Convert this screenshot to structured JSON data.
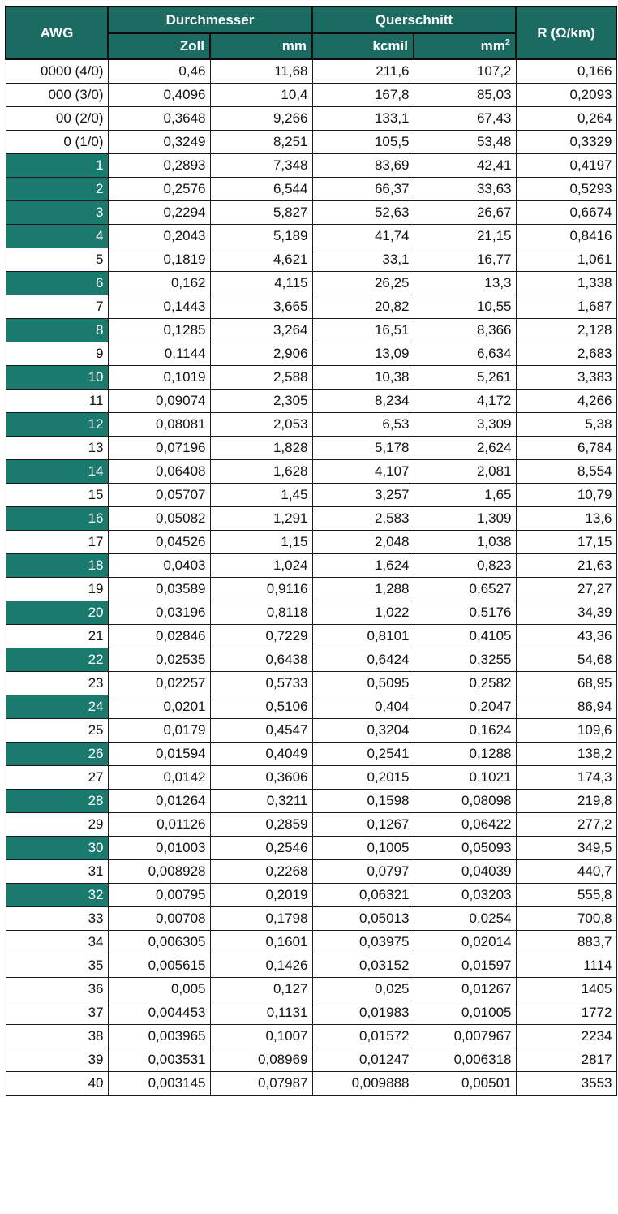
{
  "header": {
    "awg": "AWG",
    "durchmesser": "Durchmesser",
    "querschnitt": "Querschnitt",
    "resistance": "R (Ω/km)",
    "zoll": "Zoll",
    "mm": "mm",
    "kcmil": "kcmil",
    "mm2_base": "mm",
    "mm2_sup": "2"
  },
  "colors": {
    "header_bg": "#1b6b63",
    "highlight_bg": "#1b7a6e",
    "header_text": "#ffffff"
  },
  "rows": [
    {
      "awg": "0000 (4/0)",
      "zoll": "0,46",
      "mm": "11,68",
      "kcmil": "211,6",
      "mm2": "107,2",
      "r": "0,166",
      "highlight": false
    },
    {
      "awg": "000 (3/0)",
      "zoll": "0,4096",
      "mm": "10,4",
      "kcmil": "167,8",
      "mm2": "85,03",
      "r": "0,2093",
      "highlight": false
    },
    {
      "awg": "00 (2/0)",
      "zoll": "0,3648",
      "mm": "9,266",
      "kcmil": "133,1",
      "mm2": "67,43",
      "r": "0,264",
      "highlight": false
    },
    {
      "awg": "0 (1/0)",
      "zoll": "0,3249",
      "mm": "8,251",
      "kcmil": "105,5",
      "mm2": "53,48",
      "r": "0,3329",
      "highlight": false
    },
    {
      "awg": "1",
      "zoll": "0,2893",
      "mm": "7,348",
      "kcmil": "83,69",
      "mm2": "42,41",
      "r": "0,4197",
      "highlight": true
    },
    {
      "awg": "2",
      "zoll": "0,2576",
      "mm": "6,544",
      "kcmil": "66,37",
      "mm2": "33,63",
      "r": "0,5293",
      "highlight": true
    },
    {
      "awg": "3",
      "zoll": "0,2294",
      "mm": "5,827",
      "kcmil": "52,63",
      "mm2": "26,67",
      "r": "0,6674",
      "highlight": true
    },
    {
      "awg": "4",
      "zoll": "0,2043",
      "mm": "5,189",
      "kcmil": "41,74",
      "mm2": "21,15",
      "r": "0,8416",
      "highlight": true
    },
    {
      "awg": "5",
      "zoll": "0,1819",
      "mm": "4,621",
      "kcmil": "33,1",
      "mm2": "16,77",
      "r": "1,061",
      "highlight": false
    },
    {
      "awg": "6",
      "zoll": "0,162",
      "mm": "4,115",
      "kcmil": "26,25",
      "mm2": "13,3",
      "r": "1,338",
      "highlight": true
    },
    {
      "awg": "7",
      "zoll": "0,1443",
      "mm": "3,665",
      "kcmil": "20,82",
      "mm2": "10,55",
      "r": "1,687",
      "highlight": false
    },
    {
      "awg": "8",
      "zoll": "0,1285",
      "mm": "3,264",
      "kcmil": "16,51",
      "mm2": "8,366",
      "r": "2,128",
      "highlight": true
    },
    {
      "awg": "9",
      "zoll": "0,1144",
      "mm": "2,906",
      "kcmil": "13,09",
      "mm2": "6,634",
      "r": "2,683",
      "highlight": false
    },
    {
      "awg": "10",
      "zoll": "0,1019",
      "mm": "2,588",
      "kcmil": "10,38",
      "mm2": "5,261",
      "r": "3,383",
      "highlight": true
    },
    {
      "awg": "11",
      "zoll": "0,09074",
      "mm": "2,305",
      "kcmil": "8,234",
      "mm2": "4,172",
      "r": "4,266",
      "highlight": false
    },
    {
      "awg": "12",
      "zoll": "0,08081",
      "mm": "2,053",
      "kcmil": "6,53",
      "mm2": "3,309",
      "r": "5,38",
      "highlight": true
    },
    {
      "awg": "13",
      "zoll": "0,07196",
      "mm": "1,828",
      "kcmil": "5,178",
      "mm2": "2,624",
      "r": "6,784",
      "highlight": false
    },
    {
      "awg": "14",
      "zoll": "0,06408",
      "mm": "1,628",
      "kcmil": "4,107",
      "mm2": "2,081",
      "r": "8,554",
      "highlight": true
    },
    {
      "awg": "15",
      "zoll": "0,05707",
      "mm": "1,45",
      "kcmil": "3,257",
      "mm2": "1,65",
      "r": "10,79",
      "highlight": false
    },
    {
      "awg": "16",
      "zoll": "0,05082",
      "mm": "1,291",
      "kcmil": "2,583",
      "mm2": "1,309",
      "r": "13,6",
      "highlight": true
    },
    {
      "awg": "17",
      "zoll": "0,04526",
      "mm": "1,15",
      "kcmil": "2,048",
      "mm2": "1,038",
      "r": "17,15",
      "highlight": false
    },
    {
      "awg": "18",
      "zoll": "0,0403",
      "mm": "1,024",
      "kcmil": "1,624",
      "mm2": "0,823",
      "r": "21,63",
      "highlight": true
    },
    {
      "awg": "19",
      "zoll": "0,03589",
      "mm": "0,9116",
      "kcmil": "1,288",
      "mm2": "0,6527",
      "r": "27,27",
      "highlight": false
    },
    {
      "awg": "20",
      "zoll": "0,03196",
      "mm": "0,8118",
      "kcmil": "1,022",
      "mm2": "0,5176",
      "r": "34,39",
      "highlight": true
    },
    {
      "awg": "21",
      "zoll": "0,02846",
      "mm": "0,7229",
      "kcmil": "0,8101",
      "mm2": "0,4105",
      "r": "43,36",
      "highlight": false
    },
    {
      "awg": "22",
      "zoll": "0,02535",
      "mm": "0,6438",
      "kcmil": "0,6424",
      "mm2": "0,3255",
      "r": "54,68",
      "highlight": true
    },
    {
      "awg": "23",
      "zoll": "0,02257",
      "mm": "0,5733",
      "kcmil": "0,5095",
      "mm2": "0,2582",
      "r": "68,95",
      "highlight": false
    },
    {
      "awg": "24",
      "zoll": "0,0201",
      "mm": "0,5106",
      "kcmil": "0,404",
      "mm2": "0,2047",
      "r": "86,94",
      "highlight": true
    },
    {
      "awg": "25",
      "zoll": "0,0179",
      "mm": "0,4547",
      "kcmil": "0,3204",
      "mm2": "0,1624",
      "r": "109,6",
      "highlight": false
    },
    {
      "awg": "26",
      "zoll": "0,01594",
      "mm": "0,4049",
      "kcmil": "0,2541",
      "mm2": "0,1288",
      "r": "138,2",
      "highlight": true
    },
    {
      "awg": "27",
      "zoll": "0,0142",
      "mm": "0,3606",
      "kcmil": "0,2015",
      "mm2": "0,1021",
      "r": "174,3",
      "highlight": false
    },
    {
      "awg": "28",
      "zoll": "0,01264",
      "mm": "0,3211",
      "kcmil": "0,1598",
      "mm2": "0,08098",
      "r": "219,8",
      "highlight": true
    },
    {
      "awg": "29",
      "zoll": "0,01126",
      "mm": "0,2859",
      "kcmil": "0,1267",
      "mm2": "0,06422",
      "r": "277,2",
      "highlight": false
    },
    {
      "awg": "30",
      "zoll": "0,01003",
      "mm": "0,2546",
      "kcmil": "0,1005",
      "mm2": "0,05093",
      "r": "349,5",
      "highlight": true
    },
    {
      "awg": "31",
      "zoll": "0,008928",
      "mm": "0,2268",
      "kcmil": "0,0797",
      "mm2": "0,04039",
      "r": "440,7",
      "highlight": false
    },
    {
      "awg": "32",
      "zoll": "0,00795",
      "mm": "0,2019",
      "kcmil": "0,06321",
      "mm2": "0,03203",
      "r": "555,8",
      "highlight": true
    },
    {
      "awg": "33",
      "zoll": "0,00708",
      "mm": "0,1798",
      "kcmil": "0,05013",
      "mm2": "0,0254",
      "r": "700,8",
      "highlight": false
    },
    {
      "awg": "34",
      "zoll": "0,006305",
      "mm": "0,1601",
      "kcmil": "0,03975",
      "mm2": "0,02014",
      "r": "883,7",
      "highlight": false
    },
    {
      "awg": "35",
      "zoll": "0,005615",
      "mm": "0,1426",
      "kcmil": "0,03152",
      "mm2": "0,01597",
      "r": "1114",
      "highlight": false
    },
    {
      "awg": "36",
      "zoll": "0,005",
      "mm": "0,127",
      "kcmil": "0,025",
      "mm2": "0,01267",
      "r": "1405",
      "highlight": false
    },
    {
      "awg": "37",
      "zoll": "0,004453",
      "mm": "0,1131",
      "kcmil": "0,01983",
      "mm2": "0,01005",
      "r": "1772",
      "highlight": false
    },
    {
      "awg": "38",
      "zoll": "0,003965",
      "mm": "0,1007",
      "kcmil": "0,01572",
      "mm2": "0,007967",
      "r": "2234",
      "highlight": false
    },
    {
      "awg": "39",
      "zoll": "0,003531",
      "mm": "0,08969",
      "kcmil": "0,01247",
      "mm2": "0,006318",
      "r": "2817",
      "highlight": false
    },
    {
      "awg": "40",
      "zoll": "0,003145",
      "mm": "0,07987",
      "kcmil": "0,009888",
      "mm2": "0,00501",
      "r": "3553",
      "highlight": false
    }
  ]
}
